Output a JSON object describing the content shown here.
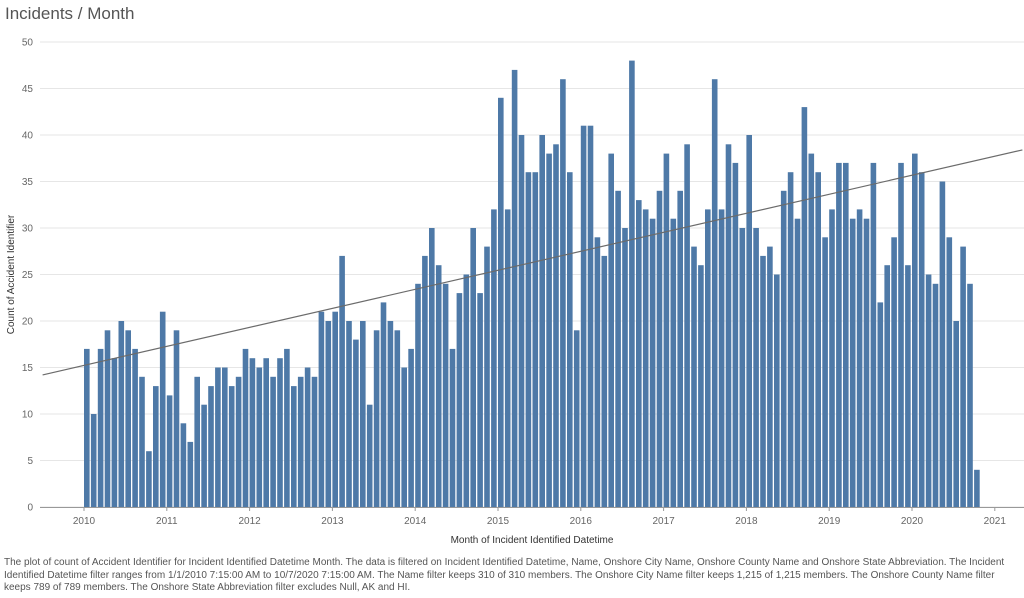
{
  "title": "Incidents / Month",
  "caption": "The plot of count of Accident Identifier for Incident Identified Datetime Month. The data is filtered on Incident Identified Datetime, Name, Onshore City Name, Onshore County Name and Onshore State Abbreviation. The Incident Identified Datetime filter ranges from 1/1/2010 7:15:00 AM to 10/7/2020 7:15:00 AM. The Name filter keeps 310 of 310 members. The Onshore City Name filter keeps 1,215 of 1,215 members. The Onshore County Name filter keeps 789 of 789 members. The Onshore State Abbreviation filter excludes Null, AK and HI.",
  "colors": {
    "bar": "#4e79a7",
    "trend": "#6b6b6b",
    "grid": "#e6e6e6"
  },
  "chart_data": {
    "type": "bar",
    "xlabel": "Month of Incident Identified Datetime",
    "ylabel": "Count of Accident Identifier",
    "ylim": [
      0,
      50
    ],
    "yticks": [
      0,
      5,
      10,
      15,
      20,
      25,
      30,
      35,
      40,
      45,
      50
    ],
    "xticks": [
      "2010",
      "2011",
      "2012",
      "2013",
      "2014",
      "2015",
      "2016",
      "2017",
      "2018",
      "2019",
      "2020",
      "2021"
    ],
    "start_month": "2010-01",
    "values": [
      17,
      10,
      17,
      19,
      16,
      20,
      19,
      17,
      14,
      6,
      13,
      21,
      12,
      19,
      9,
      7,
      14,
      11,
      13,
      15,
      15,
      13,
      14,
      17,
      16,
      15,
      16,
      14,
      16,
      17,
      13,
      14,
      15,
      14,
      21,
      20,
      21,
      27,
      20,
      18,
      20,
      11,
      19,
      22,
      20,
      19,
      15,
      17,
      24,
      27,
      30,
      26,
      24,
      17,
      23,
      25,
      30,
      23,
      28,
      32,
      44,
      32,
      47,
      40,
      36,
      36,
      40,
      38,
      39,
      46,
      36,
      19,
      41,
      41,
      29,
      27,
      38,
      34,
      30,
      48,
      33,
      32,
      31,
      34,
      38,
      31,
      34,
      39,
      28,
      26,
      32,
      46,
      32,
      39,
      37,
      30,
      40,
      30,
      27,
      28,
      25,
      34,
      36,
      31,
      43,
      38,
      36,
      29,
      32,
      37,
      37,
      31,
      32,
      31,
      37,
      22,
      26,
      29,
      37,
      26,
      38,
      36,
      25,
      24,
      35,
      29,
      20,
      28,
      24,
      4
    ],
    "trend_line": {
      "start_value": 14.2,
      "end_value": 38.4,
      "start_month": "2009-07",
      "end_month": "2021-05"
    },
    "grid": true
  }
}
